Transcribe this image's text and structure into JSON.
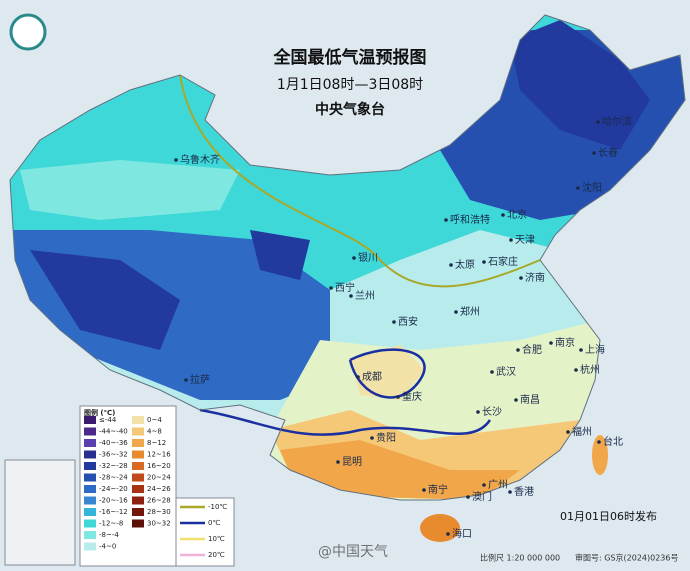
{
  "header": {
    "title": "全国最低气温预报图",
    "period": "1月1日08时—3日08时",
    "issuer": "中央气象台"
  },
  "cities": [
    "乌鲁木齐",
    "呼和浩特",
    "北京",
    "天津",
    "银川",
    "太原",
    "石家庄",
    "济南",
    "西宁",
    "兰州",
    "西安",
    "郑州",
    "合肥",
    "南京",
    "上海",
    "杭州",
    "武汉",
    "南昌",
    "成都",
    "重庆",
    "长沙",
    "贵阳",
    "昆明",
    "福州",
    "台北",
    "南宁",
    "广州",
    "香港",
    "澳门",
    "海口",
    "拉萨",
    "哈尔滨",
    "长春",
    "沈阳"
  ],
  "legend": {
    "title": "图例 (℃)",
    "items": [
      {
        "label": "≤-44",
        "color": "#3a1a6e"
      },
      {
        "label": "-44~-40",
        "color": "#4b2a8a"
      },
      {
        "label": "-40~-36",
        "color": "#5a3fb0"
      },
      {
        "label": "-36~-32",
        "color": "#2a2f8f"
      },
      {
        "label": "-32~-28",
        "color": "#22399e"
      },
      {
        "label": "-28~-24",
        "color": "#2550b0"
      },
      {
        "label": "-24~-20",
        "color": "#2f6ac4"
      },
      {
        "label": "-20~-16",
        "color": "#3a86d0"
      },
      {
        "label": "-16~-12",
        "color": "#34b6d8"
      },
      {
        "label": "-12~-8",
        "color": "#3fd8d8"
      },
      {
        "label": "-8~-4",
        "color": "#7ee8e0"
      },
      {
        "label": "-4~0",
        "color": "#b8ecec"
      },
      {
        "label": "0~4",
        "color": "#f2e2a8"
      },
      {
        "label": "4~8",
        "color": "#f5c877"
      },
      {
        "label": "8~12",
        "color": "#f2a64a"
      },
      {
        "label": "12~16",
        "color": "#e88a2e"
      },
      {
        "label": "16~20",
        "color": "#d86a22"
      },
      {
        "label": "20~24",
        "color": "#c04a1a"
      },
      {
        "label": "24~26",
        "color": "#a83214"
      },
      {
        "label": "26~28",
        "color": "#8e2010"
      },
      {
        "label": "28~30",
        "color": "#74160c"
      },
      {
        "label": "30~32",
        "color": "#5c1008"
      }
    ],
    "lines": [
      {
        "label": "-10℃",
        "color": "#a8a82a"
      },
      {
        "label": "0℃",
        "color": "#1a2fa0"
      },
      {
        "label": "10℃",
        "color": "#f0e070"
      },
      {
        "label": "20℃",
        "color": "#f0b0d8"
      }
    ]
  },
  "footer": {
    "issued": "01月01日06时发布",
    "scale": "比例尺 1:20 000 000",
    "approval": "审图号: GS京(2024)0236号",
    "watermark": "@中国天气"
  }
}
